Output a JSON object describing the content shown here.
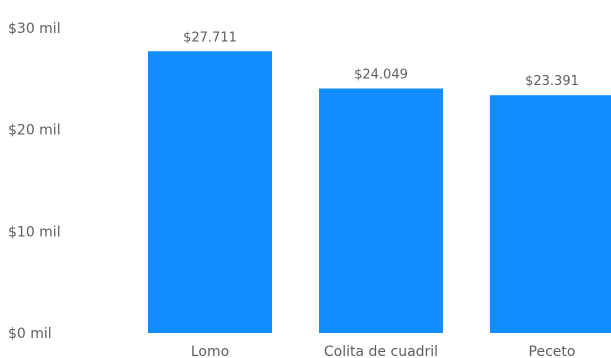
{
  "chart_data": {
    "type": "bar",
    "categories": [
      "Lomo",
      "Colita de cuadril",
      "Peceto"
    ],
    "values": [
      27711,
      24049,
      23391
    ],
    "data_labels": [
      "$27.711",
      "$24.049",
      "$23.391"
    ],
    "yticks": [
      0,
      10000,
      20000,
      30000
    ],
    "ytick_labels": [
      "$0 mil",
      "$10 mil",
      "$20 mil",
      "$30 mil"
    ],
    "ylim": [
      0,
      30000
    ],
    "grid": false,
    "legend": "none",
    "colors": {
      "bar": "#118dff",
      "text": "#605e5c"
    }
  }
}
